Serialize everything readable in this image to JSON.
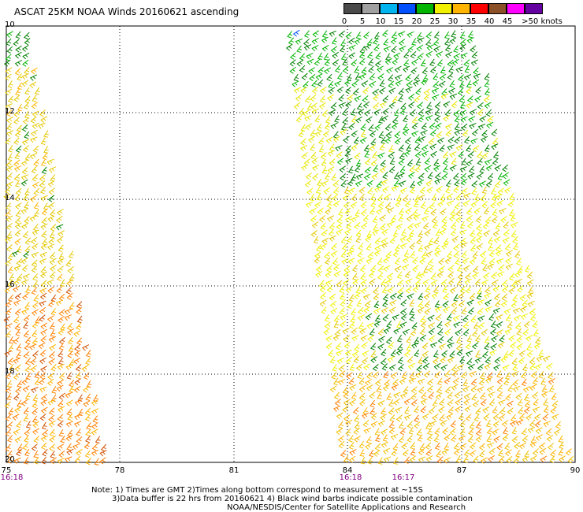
{
  "title": "ASCAT 25KM NOAA Winds 20160621 ascending",
  "scale": {
    "labels": [
      "0",
      "5",
      "10",
      "15",
      "20",
      "25",
      "30",
      "35",
      "40",
      "45",
      ">50 knots"
    ],
    "colors": [
      "#4a4a4a",
      "#a0a0a0",
      "#00b4f0",
      "#0050ff",
      "#00b400",
      "#f0f000",
      "#ffb400",
      "#ff0000",
      "#8c5028",
      "#ff00ff",
      "#6400a0"
    ]
  },
  "axes": {
    "y_labels": [
      "10",
      "12",
      "14",
      "16",
      "18",
      "20"
    ],
    "x_labels": [
      "75",
      "78",
      "81",
      "84",
      "87",
      "90"
    ]
  },
  "times": [
    "16:18",
    "16:18",
    "16:17"
  ],
  "notes": {
    "line1": "Note: 1) Times are GMT 2)Times along bottom correspond to measurement at ~15S",
    "line2": "3)Data buffer is 22 hrs from 20160621 4) Black wind barbs indicate possible contamination",
    "line3": "NOAA/NESDIS/Center for Satellite Applications and Research"
  },
  "map_data": {
    "lat_range": [
      -20,
      -10
    ],
    "lon_range": [
      75,
      90
    ],
    "swaths": [
      {
        "name": "west",
        "time": "16:18"
      },
      {
        "name": "east",
        "time": "16:17"
      }
    ]
  }
}
